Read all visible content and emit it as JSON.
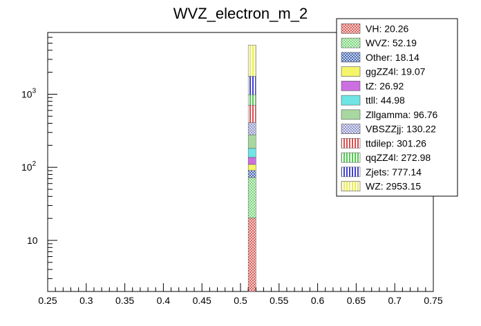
{
  "chart_data": {
    "type": "bar",
    "stacked": true,
    "title": "WVZ_electron_m_2",
    "xlabel": "",
    "ylabel": "",
    "xlim": [
      0.25,
      0.75
    ],
    "ylim": [
      2,
      7000
    ],
    "yscale": "log",
    "bin": [
      0.51,
      0.52
    ],
    "x_tick_labels": [
      "0.25",
      "0.3",
      "0.35",
      "0.4",
      "0.45",
      "0.5",
      "0.55",
      "0.6",
      "0.65",
      "0.7",
      "0.75"
    ],
    "x_ticks": [
      0.25,
      0.3,
      0.35,
      0.4,
      0.45,
      0.5,
      0.55,
      0.6,
      0.65,
      0.7,
      0.75
    ],
    "y_tick_labels": [
      {
        "value": 10,
        "base": "10",
        "exp": ""
      },
      {
        "value": 100,
        "base": "10",
        "exp": "2"
      },
      {
        "value": 1000,
        "base": "10",
        "exp": "3"
      }
    ],
    "legend_position": "top-right",
    "series": [
      {
        "name": "VH",
        "label": "VH: 20.26",
        "value": 20.26,
        "color": "#d9534f",
        "pattern": "cross"
      },
      {
        "name": "WVZ",
        "label": "WVZ: 52.19",
        "value": 52.19,
        "color": "#6fd36f",
        "pattern": "cross"
      },
      {
        "name": "Other",
        "label": "Other: 18.14",
        "value": 18.14,
        "color": "#3a5fb0",
        "pattern": "cross"
      },
      {
        "name": "ggZZ4l",
        "label": "ggZZ4l: 19.07",
        "value": 19.07,
        "color": "#f5f56a",
        "pattern": "solid"
      },
      {
        "name": "tZ",
        "label": "tZ: 26.92",
        "value": 26.92,
        "color": "#cc6fe0",
        "pattern": "solid"
      },
      {
        "name": "ttll",
        "label": "ttll: 44.98",
        "value": 44.98,
        "color": "#6fe5e5",
        "pattern": "solid"
      },
      {
        "name": "Zllgamma",
        "label": "Zllgamma: 96.76",
        "value": 96.76,
        "color": "#a8d8a0",
        "pattern": "solid"
      },
      {
        "name": "VBSZZjj",
        "label": "VBSZZjj: 130.22",
        "value": 130.22,
        "color": "#8a8fc8",
        "pattern": "cross"
      },
      {
        "name": "ttdilep",
        "label": "ttdilep: 301.26",
        "value": 301.26,
        "color": "#d32020",
        "pattern": "vlines"
      },
      {
        "name": "qqZZ4l",
        "label": "qqZZ4l: 272.98",
        "value": 272.98,
        "color": "#20c020",
        "pattern": "vlines"
      },
      {
        "name": "Zjets",
        "label": "Zjets: 777.14",
        "value": 777.14,
        "color": "#1010c0",
        "pattern": "vlines"
      },
      {
        "name": "WZ",
        "label": "WZ: 2953.15",
        "value": 2953.15,
        "color": "#e8e820",
        "pattern": "vlines"
      }
    ]
  }
}
